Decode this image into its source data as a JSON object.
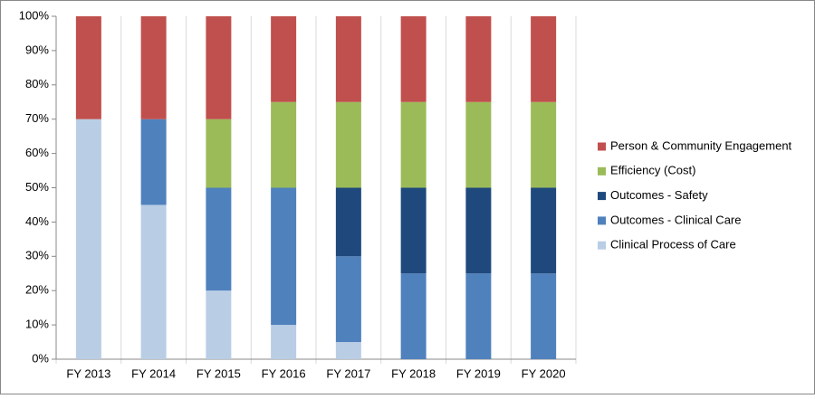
{
  "chart_data": {
    "type": "stacked_bar",
    "categories": [
      "FY 2013",
      "FY 2014",
      "FY 2015",
      "FY 2016",
      "FY 2017",
      "FY 2018",
      "FY 2019",
      "FY 2020"
    ],
    "series": [
      {
        "name": "Clinical Process of Care",
        "color": "#b9cde5",
        "values": [
          70,
          45,
          20,
          10,
          5,
          0,
          0,
          0
        ]
      },
      {
        "name": "Outcomes - Clinical Care",
        "color": "#4f81bd",
        "values": [
          0,
          25,
          30,
          40,
          25,
          25,
          25,
          25
        ]
      },
      {
        "name": "Outcomes - Safety",
        "color": "#1f497d",
        "values": [
          0,
          0,
          0,
          0,
          20,
          25,
          25,
          25
        ]
      },
      {
        "name": "Efficiency (Cost)",
        "color": "#9bbb59",
        "values": [
          0,
          0,
          20,
          25,
          25,
          25,
          25,
          25
        ]
      },
      {
        "name": "Person & Community Engagement",
        "color": "#c0504d",
        "values": [
          30,
          30,
          30,
          25,
          25,
          25,
          25,
          25
        ]
      }
    ],
    "ylim": [
      0,
      100
    ],
    "yticks": [
      {
        "value": 0,
        "label": "0%"
      },
      {
        "value": 10,
        "label": "10%"
      },
      {
        "value": 20,
        "label": "20%"
      },
      {
        "value": 30,
        "label": "30%"
      },
      {
        "value": 40,
        "label": "40%"
      },
      {
        "value": 50,
        "label": "50%"
      },
      {
        "value": 60,
        "label": "60%"
      },
      {
        "value": 70,
        "label": "70%"
      },
      {
        "value": 80,
        "label": "80%"
      },
      {
        "value": 90,
        "label": "90%"
      },
      {
        "value": 100,
        "label": "100%"
      }
    ],
    "legend": "right"
  }
}
